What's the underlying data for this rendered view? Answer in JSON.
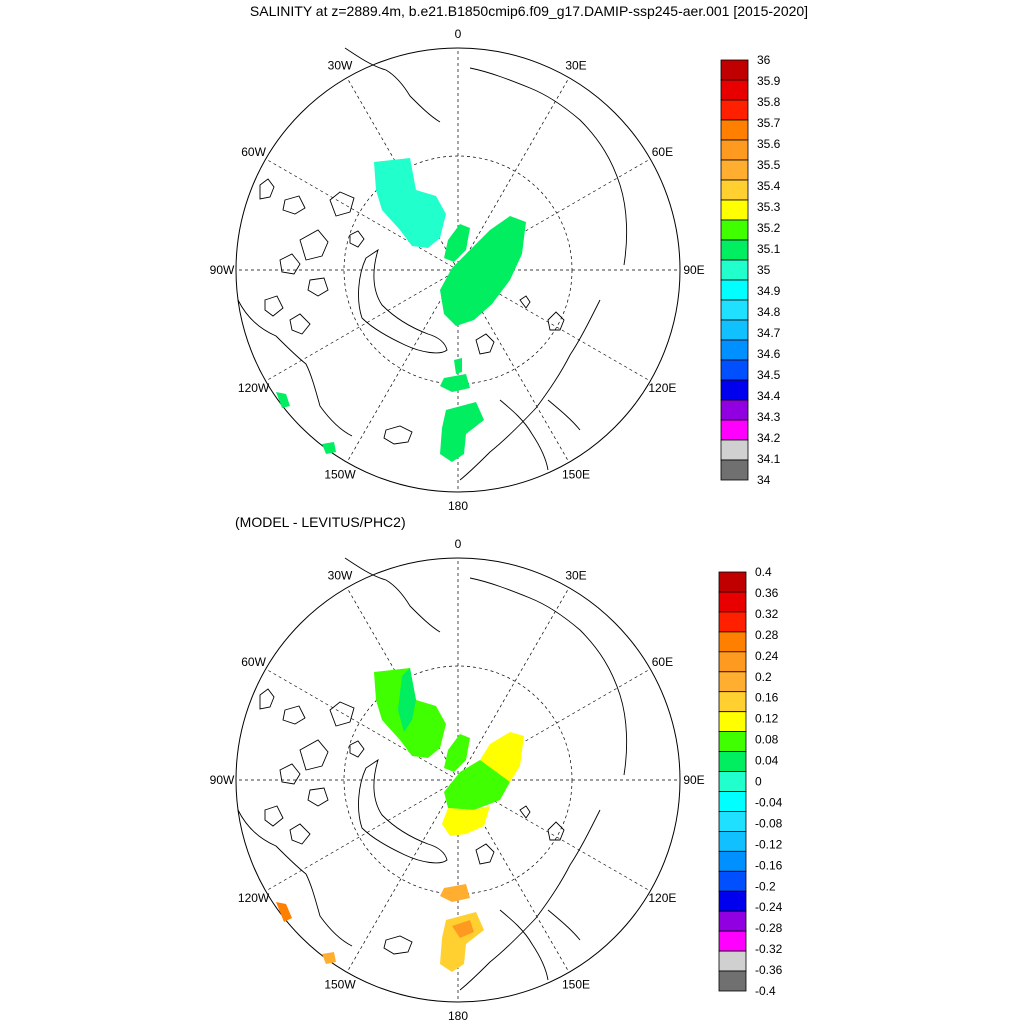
{
  "figure": {
    "title": "SALINITY at z=2889.4m, b.e21.B1850cmip6.f09_g17.DAMIP-ssp245-aer.001 [2015-2020]",
    "subtitle": "(MODEL - LEVITUS/PHC2)"
  },
  "maps": [
    {
      "name": "salinity-map",
      "lon_labels": [
        "180",
        "150E",
        "120E",
        "90E",
        "60E",
        "30E",
        "0",
        "30W",
        "60W",
        "90W",
        "120W",
        "150W"
      ],
      "colorbar": {
        "labels": [
          "36",
          "35.9",
          "35.8",
          "35.7",
          "35.6",
          "35.5",
          "35.4",
          "35.3",
          "35.2",
          "35.1",
          "35",
          "34.9",
          "34.8",
          "34.7",
          "34.6",
          "34.5",
          "34.4",
          "34.3",
          "34.2",
          "34.1",
          "34"
        ],
        "colors": [
          "#c00000",
          "#e80000",
          "#ff2000",
          "#ff8000",
          "#ff9a20",
          "#ffae30",
          "#ffd030",
          "#ffff00",
          "#40ff00",
          "#00ee60",
          "#20ffcc",
          "#00ffff",
          "#20e0ff",
          "#10c0ff",
          "#0090ff",
          "#0050ff",
          "#0000ee",
          "#9000e0",
          "#ff00ff",
          "#d0d0d0",
          "#707070"
        ]
      }
    },
    {
      "name": "difference-map",
      "lon_labels": [
        "180",
        "150E",
        "120E",
        "90E",
        "60E",
        "30E",
        "0",
        "30W",
        "60W",
        "90W",
        "120W",
        "150W"
      ],
      "colorbar": {
        "labels": [
          "0.4",
          "0.36",
          "0.32",
          "0.28",
          "0.24",
          "0.2",
          "0.16",
          "0.12",
          "0.08",
          "0.04",
          "0",
          "-0.04",
          "-0.08",
          "-0.12",
          "-0.16",
          "-0.2",
          "-0.24",
          "-0.28",
          "-0.32",
          "-0.36",
          "-0.4"
        ],
        "colors": [
          "#c00000",
          "#e80000",
          "#ff2000",
          "#ff8000",
          "#ff9a20",
          "#ffae30",
          "#ffd030",
          "#ffff00",
          "#40ff00",
          "#00ee60",
          "#20ffcc",
          "#00ffff",
          "#20e0ff",
          "#10c0ff",
          "#0090ff",
          "#0050ff",
          "#0000ee",
          "#9000e0",
          "#ff00ff",
          "#d0d0d0",
          "#707070"
        ]
      }
    }
  ]
}
